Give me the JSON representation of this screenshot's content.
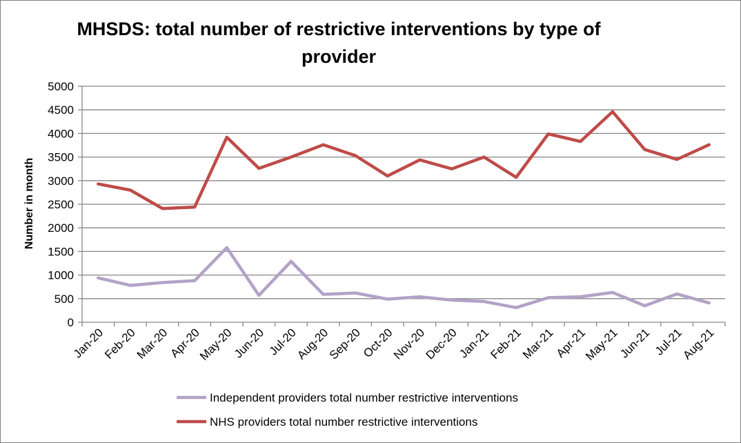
{
  "chart_data": {
    "type": "line",
    "title_line1": "MHSDS: total number of restrictive interventions by type of",
    "title_line2": "provider",
    "ylabel": "Number in month",
    "xlabel": "",
    "ylim": [
      0,
      5000
    ],
    "yticks": [
      "0",
      "500",
      "1000",
      "1500",
      "2000",
      "2500",
      "3000",
      "3500",
      "4000",
      "4500",
      "5000"
    ],
    "grid": "horizontal",
    "legend_position": "bottom",
    "categories": [
      "Jan-20",
      "Feb-20",
      "Mar-20",
      "Apr-20",
      "May-20",
      "Jun-20",
      "Jul-20",
      "Aug-20",
      "Sep-20",
      "Oct-20",
      "Nov-20",
      "Dec-20",
      "Jan-21",
      "Feb-21",
      "Mar-21",
      "Apr-21",
      "May-21",
      "Jun-21",
      "Jul-21",
      "Aug-21"
    ],
    "series": [
      {
        "name": "Independent providers total number restrictive interventions",
        "color": "#b3a2c7",
        "values": [
          940,
          780,
          840,
          880,
          1580,
          570,
          1290,
          590,
          620,
          490,
          540,
          470,
          440,
          310,
          520,
          540,
          630,
          350,
          600,
          410
        ]
      },
      {
        "name": "NHS providers total number restrictive interventions",
        "color": "#be4b48",
        "values": [
          2930,
          2800,
          2410,
          2440,
          3920,
          3260,
          3500,
          3760,
          3530,
          3100,
          3440,
          3250,
          3500,
          3070,
          3990,
          3830,
          4460,
          3660,
          3450,
          3760
        ]
      }
    ]
  }
}
